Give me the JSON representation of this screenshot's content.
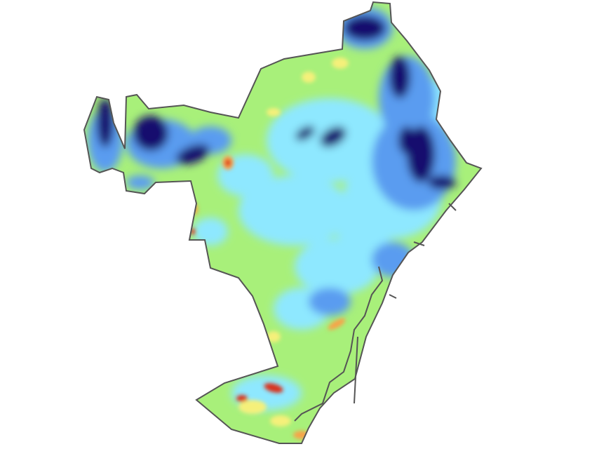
{
  "map": {
    "type": "heatmap",
    "colormap": [
      "#12106e",
      "#3a2a8a",
      "#2a5fd6",
      "#5a9cf0",
      "#8ee8ff",
      "#9ff27c",
      "#c6f46a",
      "#f5f07a",
      "#f7a34a",
      "#d9301e",
      "#8a1010"
    ],
    "outline_color": "#555555",
    "background": "#ffffff"
  }
}
